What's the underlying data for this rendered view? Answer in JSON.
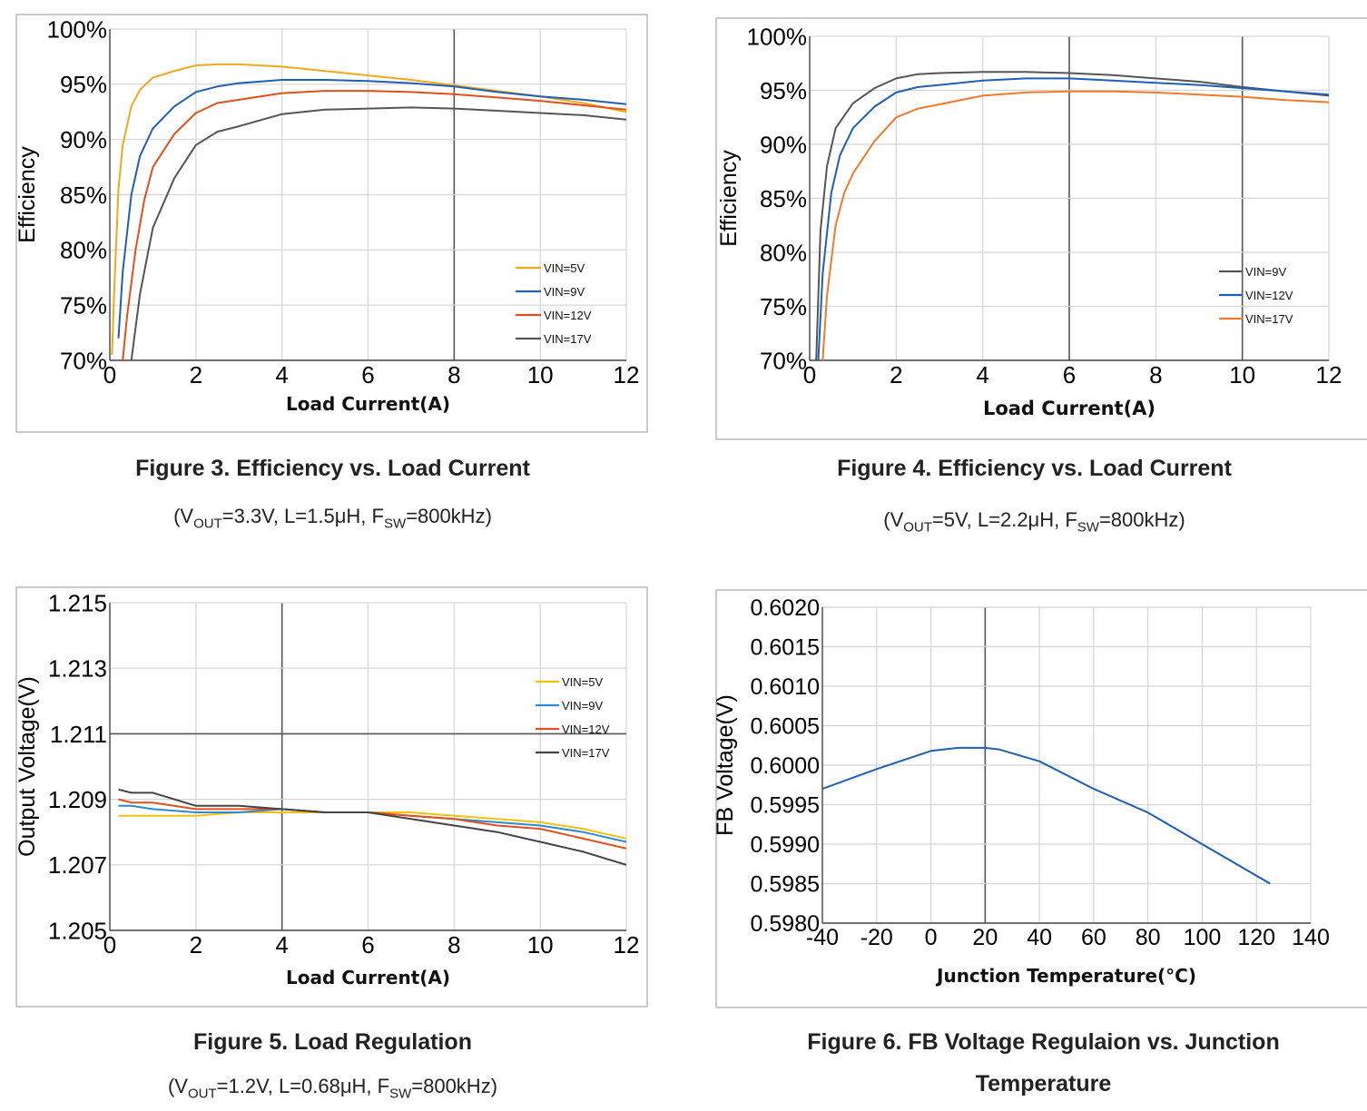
{
  "charts": [
    {
      "id": "fig3",
      "caption": "Figure 3. Efficiency vs. Load Current",
      "subcaption": {
        "a": "(V",
        "a_sub": "OUT",
        "b": "=3.3V, L=1.5μH, F",
        "b_sub": "SW",
        "c": "=800kHz)"
      },
      "chart_data": {
        "type": "line",
        "xlabel": "Load Current(A)",
        "ylabel": "Efficiency",
        "xlim": [
          0,
          12
        ],
        "ylim": [
          70,
          100
        ],
        "xticks": [
          0,
          2,
          4,
          6,
          8,
          10,
          12
        ],
        "yticks": [
          70,
          75,
          80,
          85,
          90,
          95,
          100
        ],
        "ytick_labels": [
          "70%",
          "75%",
          "80%",
          "85%",
          "90%",
          "95%",
          "100%"
        ],
        "grid": true,
        "legend": "bottom-right",
        "series": [
          {
            "name": "VIN=5V",
            "color": "#f2a81d",
            "x": [
              0.05,
              0.1,
              0.2,
              0.3,
              0.5,
              0.7,
              1.0,
              1.5,
              2.0,
              2.5,
              3,
              4,
              5,
              6,
              7,
              8,
              9,
              10,
              11,
              12
            ],
            "y": [
              70.5,
              76,
              85.5,
              89.5,
              93,
              94.5,
              95.6,
              96.2,
              96.7,
              96.8,
              96.8,
              96.6,
              96.2,
              95.8,
              95.4,
              94.9,
              94.4,
              93.9,
              93.3,
              92.5
            ]
          },
          {
            "name": "VIN=9V",
            "color": "#1f5fb4",
            "x": [
              0.2,
              0.3,
              0.5,
              0.7,
              1.0,
              1.5,
              2.0,
              2.5,
              3,
              4,
              5,
              6,
              7,
              8,
              9,
              10,
              11,
              12
            ],
            "y": [
              72,
              78,
              85,
              88.5,
              91,
              93,
              94.3,
              94.8,
              95.1,
              95.4,
              95.4,
              95.3,
              95.1,
              94.8,
              94.3,
              93.9,
              93.6,
              93.2
            ]
          },
          {
            "name": "VIN=12V",
            "color": "#e0501c",
            "x": [
              0.3,
              0.4,
              0.6,
              0.8,
              1.0,
              1.5,
              2.0,
              2.5,
              3,
              4,
              5,
              6,
              7,
              8,
              9,
              10,
              11,
              12
            ],
            "y": [
              70,
              74,
              80,
              84.5,
              87.5,
              90.5,
              92.4,
              93.3,
              93.6,
              94.2,
              94.4,
              94.4,
              94.3,
              94.1,
              93.8,
              93.5,
              93.1,
              92.7
            ]
          },
          {
            "name": "VIN=17V",
            "color": "#555555",
            "x": [
              0.5,
              0.7,
              1.0,
              1.5,
              2.0,
              2.5,
              3,
              4,
              5,
              6,
              7,
              8,
              9,
              10,
              11,
              12
            ],
            "y": [
              70,
              76,
              82,
              86.5,
              89.5,
              90.7,
              91.2,
              92.3,
              92.7,
              92.8,
              92.9,
              92.8,
              92.6,
              92.4,
              92.2,
              91.8
            ]
          }
        ]
      }
    },
    {
      "id": "fig4",
      "caption": "Figure 4. Efficiency vs. Load Current",
      "subcaption": {
        "a": "(V",
        "a_sub": "OUT",
        "b": "=5V, L=2.2μH, F",
        "b_sub": "SW",
        "c": "=800kHz)"
      },
      "chart_data": {
        "type": "line",
        "xlabel": "Load Current(A)",
        "ylabel": "Efficiency",
        "xlim": [
          0,
          12
        ],
        "ylim": [
          70,
          100
        ],
        "xticks": [
          0,
          2,
          4,
          6,
          8,
          10,
          12
        ],
        "yticks": [
          70,
          75,
          80,
          85,
          90,
          95,
          100
        ],
        "ytick_labels": [
          "70%",
          "75%",
          "80%",
          "85%",
          "90%",
          "95%",
          "100%"
        ],
        "grid": true,
        "legend": "bottom-right",
        "series": [
          {
            "name": "VIN=9V",
            "color": "#555555",
            "x": [
              0.15,
              0.25,
              0.4,
              0.6,
              1.0,
              1.5,
              2.0,
              2.5,
              3,
              4,
              5,
              6,
              7,
              8,
              9,
              10,
              11,
              12
            ],
            "y": [
              70,
              82,
              88,
              91.5,
              93.8,
              95.2,
              96.1,
              96.5,
              96.6,
              96.7,
              96.7,
              96.6,
              96.4,
              96.1,
              95.8,
              95.3,
              94.9,
              94.5
            ]
          },
          {
            "name": "VIN=12V",
            "color": "#1f5fb4",
            "x": [
              0.2,
              0.3,
              0.5,
              0.7,
              1.0,
              1.5,
              2.0,
              2.5,
              3,
              4,
              5,
              6,
              7,
              8,
              9,
              10,
              11,
              12
            ],
            "y": [
              70,
              78,
              85.5,
              89,
              91.5,
              93.5,
              94.8,
              95.3,
              95.5,
              95.9,
              96.1,
              96.1,
              95.9,
              95.7,
              95.5,
              95.2,
              94.9,
              94.6
            ]
          },
          {
            "name": "VIN=17V",
            "color": "#f07a2a",
            "x": [
              0.3,
              0.4,
              0.6,
              0.8,
              1.0,
              1.5,
              2.0,
              2.5,
              3,
              4,
              5,
              6,
              7,
              8,
              9,
              10,
              11,
              12
            ],
            "y": [
              70,
              76,
              82.5,
              85.5,
              87.3,
              90.3,
              92.5,
              93.3,
              93.7,
              94.5,
              94.8,
              94.9,
              94.9,
              94.8,
              94.6,
              94.4,
              94.1,
              93.9
            ]
          }
        ]
      }
    },
    {
      "id": "fig5",
      "caption": "Figure 5. Load Regulation",
      "subcaption": {
        "a": "(V",
        "a_sub": "OUT",
        "b": "=1.2V, L=0.68μH, F",
        "b_sub": "SW",
        "c": "=800kHz)"
      },
      "chart_data": {
        "type": "line",
        "xlabel": "Load Current(A)",
        "ylabel": "Output Voltage(V)",
        "xlim": [
          0,
          12
        ],
        "ylim": [
          1.205,
          1.215
        ],
        "xticks": [
          0,
          2,
          4,
          6,
          8,
          10,
          12
        ],
        "yticks": [
          1.205,
          1.207,
          1.209,
          1.211,
          1.213,
          1.215
        ],
        "ytick_labels": [
          "1.205",
          "1.207",
          "1.209",
          "1.211",
          "1.213",
          "1.215"
        ],
        "grid": true,
        "legend": "top-right",
        "series": [
          {
            "name": "VIN=5V",
            "color": "#f2c10d",
            "x": [
              0.2,
              0.5,
              1,
              2,
              3,
              4,
              5,
              6,
              7,
              8,
              9,
              10,
              11,
              12
            ],
            "y": [
              1.2085,
              1.2085,
              1.2085,
              1.2085,
              1.2086,
              1.2086,
              1.2086,
              1.2086,
              1.2086,
              1.2085,
              1.2084,
              1.2083,
              1.2081,
              1.2078
            ]
          },
          {
            "name": "VIN=9V",
            "color": "#2a8ad4",
            "x": [
              0.2,
              0.5,
              1,
              2,
              3,
              4,
              5,
              6,
              7,
              8,
              9,
              10,
              11,
              12
            ],
            "y": [
              1.2088,
              1.2088,
              1.2087,
              1.2086,
              1.2086,
              1.2087,
              1.2086,
              1.2086,
              1.2085,
              1.2084,
              1.2083,
              1.2082,
              1.208,
              1.2077
            ]
          },
          {
            "name": "VIN=12V",
            "color": "#e0501c",
            "x": [
              0.2,
              0.5,
              1,
              2,
              3,
              4,
              5,
              6,
              7,
              8,
              9,
              10,
              11,
              12
            ],
            "y": [
              1.209,
              1.2089,
              1.2089,
              1.2087,
              1.2087,
              1.2087,
              1.2086,
              1.2086,
              1.2085,
              1.2084,
              1.2082,
              1.2081,
              1.2078,
              1.2075
            ]
          },
          {
            "name": "VIN=17V",
            "color": "#444444",
            "x": [
              0.2,
              0.5,
              1,
              2,
              3,
              4,
              5,
              6,
              7,
              8,
              9,
              10,
              11,
              12
            ],
            "y": [
              1.2093,
              1.2092,
              1.2092,
              1.2088,
              1.2088,
              1.2087,
              1.2086,
              1.2086,
              1.2084,
              1.2082,
              1.208,
              1.2077,
              1.2074,
              1.207
            ]
          }
        ]
      }
    },
    {
      "id": "fig6",
      "caption": "Figure 6. FB Voltage Regulaion vs. Junction",
      "caption2": "Temperature",
      "chart_data": {
        "type": "line",
        "xlabel": "Junction Temperature(°C)",
        "ylabel": "FB Voltage(V)",
        "xlim": [
          -40,
          140
        ],
        "ylim": [
          0.598,
          0.602
        ],
        "xticks": [
          -40,
          -20,
          0,
          20,
          40,
          60,
          80,
          100,
          120,
          140
        ],
        "yticks": [
          0.598,
          0.5985,
          0.599,
          0.5995,
          0.6,
          0.6005,
          0.601,
          0.6015,
          0.602
        ],
        "ytick_labels": [
          "0.5980",
          "0.5985",
          "0.5990",
          "0.5995",
          "0.6000",
          "0.6005",
          "0.6010",
          "0.6015",
          "0.6020"
        ],
        "grid": true,
        "legend": "none",
        "series": [
          {
            "color": "#1f5fb4",
            "x": [
              -40,
              -20,
              0,
              10,
              20,
              25,
              40,
              60,
              80,
              100,
              125
            ],
            "y": [
              0.5997,
              0.59995,
              0.60018,
              0.60022,
              0.60022,
              0.6002,
              0.60005,
              0.5997,
              0.5994,
              0.599,
              0.5985
            ]
          }
        ]
      }
    }
  ]
}
